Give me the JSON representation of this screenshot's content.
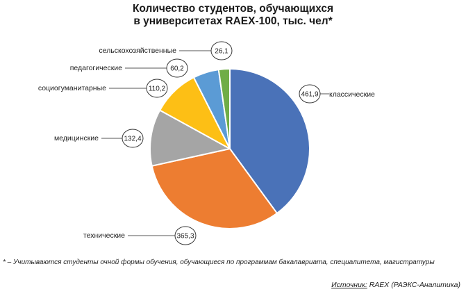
{
  "chart_data": {
    "type": "pie",
    "title_line1": "Количество студентов, обучающихся",
    "title_line2": "в университетах RAEX-100, тыс. чел*",
    "slices": [
      {
        "label": "классические",
        "value": 461.9,
        "value_label": "461,9",
        "color": "#4a72b8"
      },
      {
        "label": "технические",
        "value": 365.3,
        "value_label": "365,3",
        "color": "#ed7d31"
      },
      {
        "label": "медицинские",
        "value": 132.4,
        "value_label": "132,4",
        "color": "#a5a5a5"
      },
      {
        "label": "социогуманитарные",
        "value": 110.2,
        "value_label": "110,2",
        "color": "#fdbf15"
      },
      {
        "label": "педагогические",
        "value": 60.2,
        "value_label": "60,2",
        "color": "#5b9bd5"
      },
      {
        "label": "сельскохозяйственные",
        "value": 26.1,
        "value_label": "26,1",
        "color": "#70ad47"
      }
    ]
  },
  "footnote": "* – Учитываются студенты очной формы обучения, обучающиеся по программам бакалавриата, специалитета, магистратуры",
  "source": {
    "label": "Источник:",
    "text": " RAEX (РАЭКС-Аналитика)"
  }
}
